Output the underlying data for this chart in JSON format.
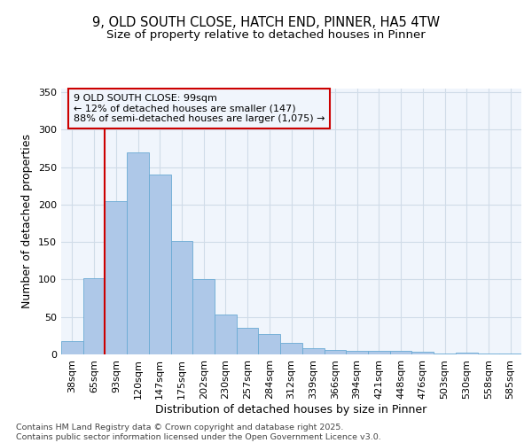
{
  "title_line1": "9, OLD SOUTH CLOSE, HATCH END, PINNER, HA5 4TW",
  "title_line2": "Size of property relative to detached houses in Pinner",
  "xlabel": "Distribution of detached houses by size in Pinner",
  "ylabel": "Number of detached properties",
  "categories": [
    "38sqm",
    "65sqm",
    "93sqm",
    "120sqm",
    "147sqm",
    "175sqm",
    "202sqm",
    "230sqm",
    "257sqm",
    "284sqm",
    "312sqm",
    "339sqm",
    "366sqm",
    "394sqm",
    "421sqm",
    "448sqm",
    "476sqm",
    "503sqm",
    "530sqm",
    "558sqm",
    "585sqm"
  ],
  "values": [
    18,
    102,
    205,
    270,
    240,
    152,
    100,
    53,
    35,
    27,
    15,
    8,
    6,
    5,
    5,
    5,
    3,
    1,
    2,
    1,
    1
  ],
  "bar_color": "#aec8e8",
  "bar_edge_color": "#6aaad4",
  "grid_color": "#d0dce8",
  "background_color": "#ffffff",
  "plot_bg_color": "#f0f5fc",
  "vline_color": "#cc0000",
  "vline_x": 1.5,
  "annotation_text": "9 OLD SOUTH CLOSE: 99sqm\n← 12% of detached houses are smaller (147)\n88% of semi-detached houses are larger (1,075) →",
  "annotation_box_edgecolor": "#cc0000",
  "ylim": [
    0,
    355
  ],
  "yticks": [
    0,
    50,
    100,
    150,
    200,
    250,
    300,
    350
  ],
  "footer_text": "Contains HM Land Registry data © Crown copyright and database right 2025.\nContains public sector information licensed under the Open Government Licence v3.0.",
  "title_fontsize": 10.5,
  "subtitle_fontsize": 9.5,
  "axis_label_fontsize": 9,
  "tick_fontsize": 8,
  "annotation_fontsize": 8,
  "footer_fontsize": 6.8
}
